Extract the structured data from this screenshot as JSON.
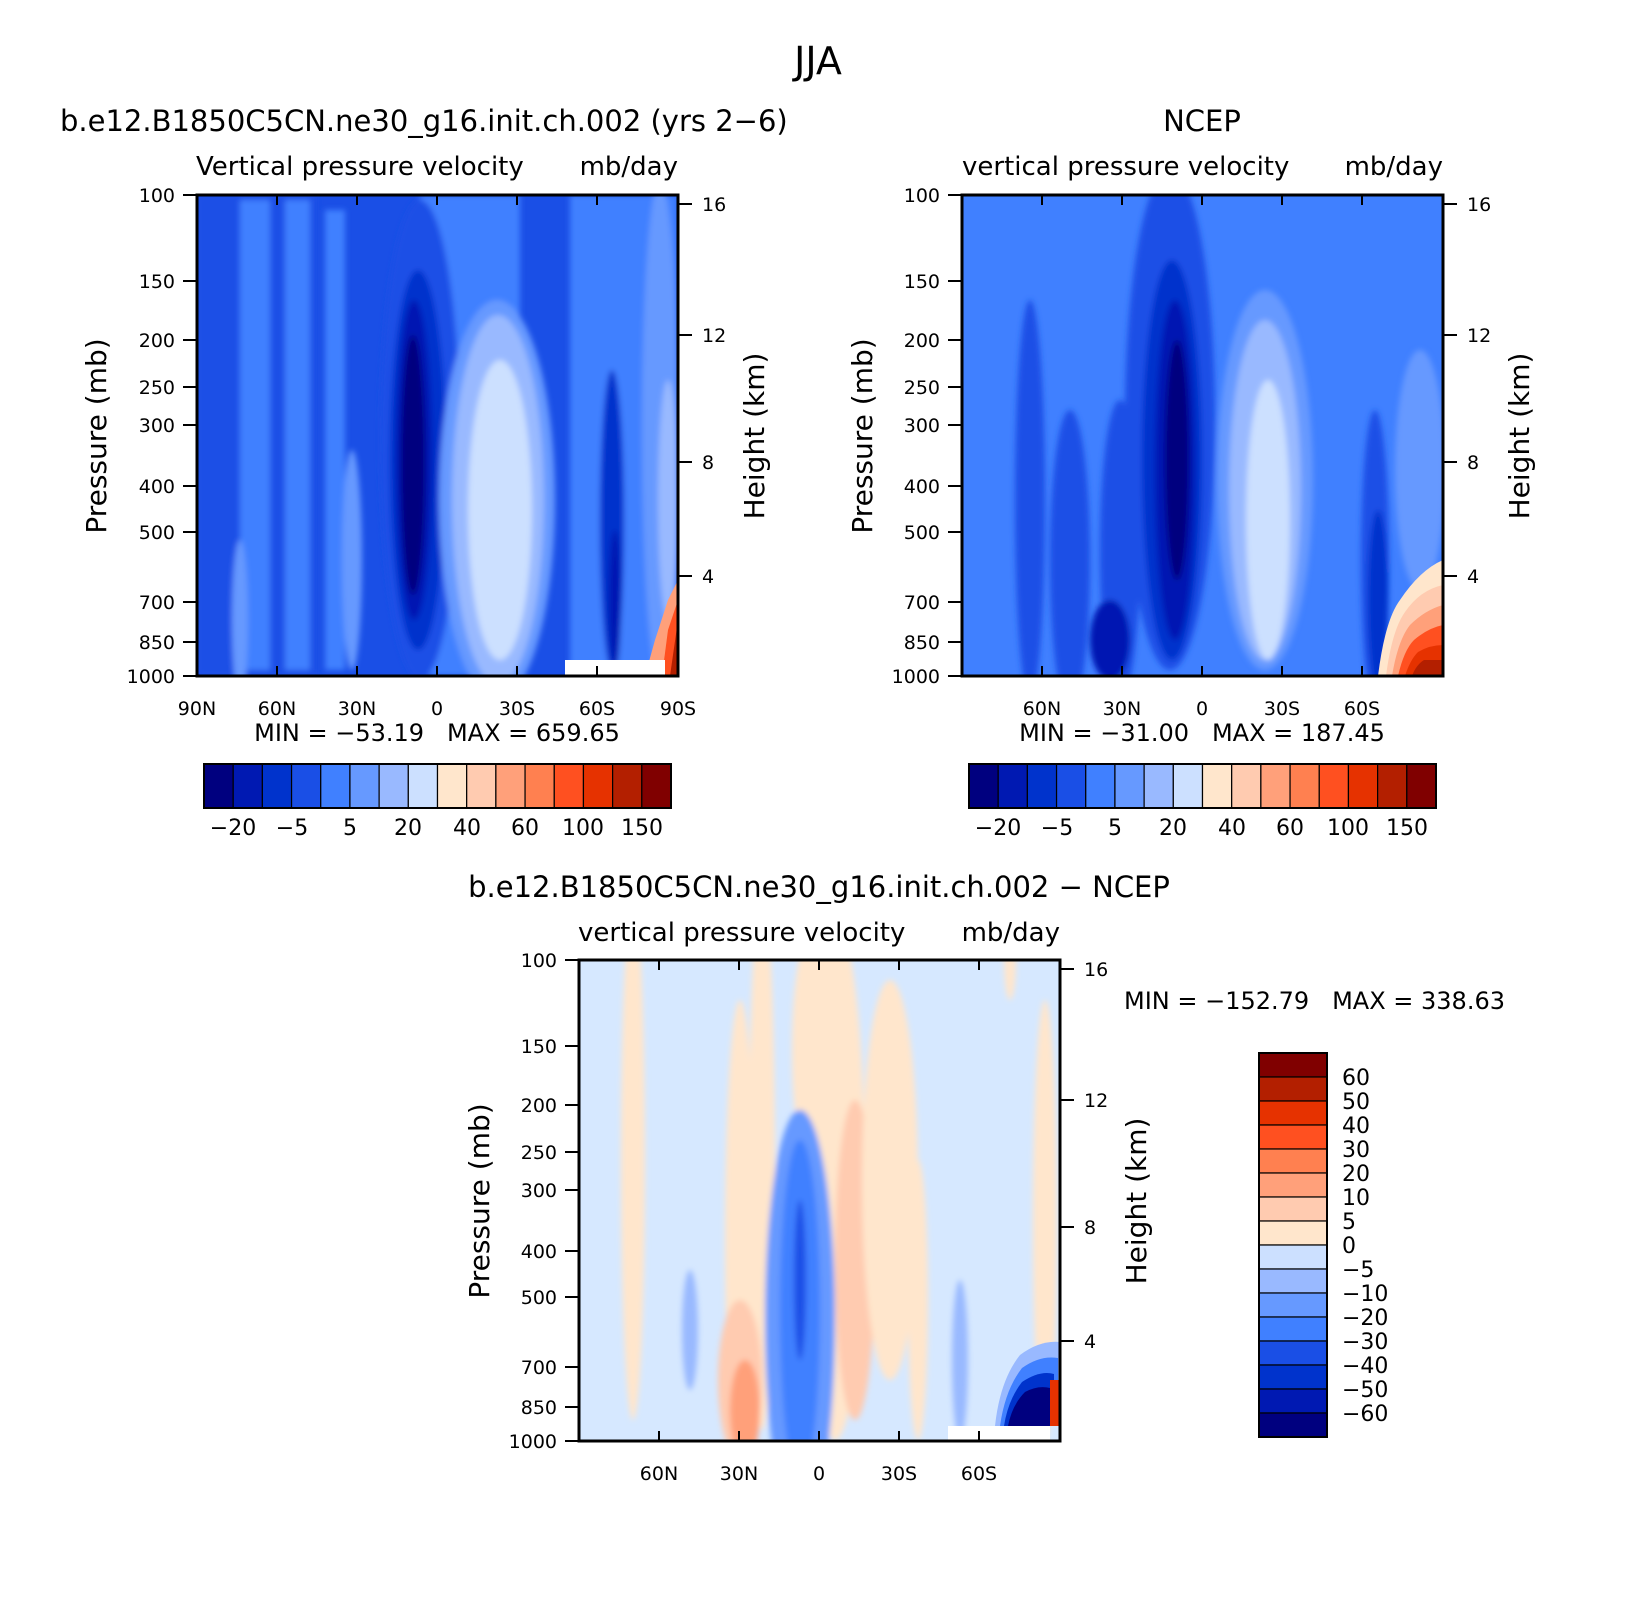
{
  "figure_title": "JJA",
  "colors": {
    "full_field": [
      "#00007f",
      "#0019b2",
      "#0033cc",
      "#1a4fe6",
      "#4080ff",
      "#6699ff",
      "#99b9ff",
      "#cce0ff",
      "#ffe6cc",
      "#ffcbb0",
      "#ffa07a",
      "#ff8050",
      "#ff5020",
      "#e63200",
      "#b31f00",
      "#800000"
    ],
    "difference": [
      "#00007f",
      "#0019b2",
      "#0033cc",
      "#1a4fe6",
      "#4080ff",
      "#6699ff",
      "#99b9ff",
      "#cce0ff",
      "#ffe6cc",
      "#ffcbb0",
      "#ffa07a",
      "#ff8050",
      "#ff5020",
      "#e63200",
      "#b31f00",
      "#800000"
    ]
  },
  "chart_data": [
    {
      "type": "heatmap",
      "title": "b.e12.B1850C5CN.ne30_g16.init.ch.002 (yrs 2−6)",
      "subtitle_left": "Vertical pressure velocity",
      "subtitle_right": "mb/day",
      "ylabel": "Pressure (mb)",
      "ylabel_right": "Height (km)",
      "x_ticks": [
        "90N",
        "60N",
        "30N",
        "0",
        "30S",
        "60S",
        "90S"
      ],
      "y_ticks": [
        "100",
        "150",
        "200",
        "250",
        "300",
        "300",
        "400",
        "500",
        "700",
        "850",
        "1000"
      ],
      "y_right_ticks": [
        "16",
        "12",
        "8",
        "4"
      ],
      "stats": "MIN = −53.19   MAX = 659.65",
      "min": -53.19,
      "max": 659.65,
      "colorbar_labels": [
        "−20",
        "−5",
        "5",
        "20",
        "40",
        "60",
        "100",
        "150"
      ],
      "colorbar_levels": [
        -20,
        -10,
        -5,
        0,
        5,
        10,
        20,
        30,
        40,
        50,
        60,
        80,
        100,
        120,
        150
      ]
    },
    {
      "type": "heatmap",
      "title": "NCEP",
      "subtitle_left": "vertical pressure velocity",
      "subtitle_right": "mb/day",
      "ylabel": "Pressure (mb)",
      "ylabel_right": "Height (km)",
      "x_ticks": [
        "60N",
        "30N",
        "0",
        "30S",
        "60S"
      ],
      "y_ticks": [
        "100",
        "150",
        "200",
        "250",
        "300",
        "300",
        "400",
        "500",
        "700",
        "850",
        "1000"
      ],
      "y_right_ticks": [
        "16",
        "12",
        "8",
        "4"
      ],
      "stats": "MIN = −31.00   MAX = 187.45",
      "min": -31.0,
      "max": 187.45,
      "colorbar_labels": [
        "−20",
        "−5",
        "5",
        "20",
        "40",
        "60",
        "100",
        "150"
      ],
      "colorbar_levels": [
        -20,
        -10,
        -5,
        0,
        5,
        10,
        20,
        30,
        40,
        50,
        60,
        80,
        100,
        120,
        150
      ]
    },
    {
      "type": "heatmap",
      "title": "b.e12.B1850C5CN.ne30_g16.init.ch.002 − NCEP",
      "subtitle_left": "vertical pressure velocity",
      "subtitle_right": "mb/day",
      "ylabel": "Pressure (mb)",
      "ylabel_right": "Height (km)",
      "x_ticks": [
        "60N",
        "30N",
        "0",
        "30S",
        "60S"
      ],
      "y_ticks": [
        "100",
        "150",
        "200",
        "250",
        "300",
        "300",
        "400",
        "500",
        "700",
        "850",
        "1000"
      ],
      "y_right_ticks": [
        "16",
        "12",
        "8",
        "4"
      ],
      "stats": "MIN = −152.79   MAX = 338.63",
      "min": -152.79,
      "max": 338.63,
      "colorbar_labels": [
        "60",
        "50",
        "40",
        "30",
        "20",
        "10",
        "5",
        "0",
        "−5",
        "−10",
        "−20",
        "−30",
        "−40",
        "−50",
        "−60"
      ],
      "colorbar_levels": [
        -60,
        -50,
        -40,
        -30,
        -20,
        -10,
        -5,
        0,
        5,
        10,
        20,
        30,
        40,
        50,
        60
      ]
    }
  ]
}
